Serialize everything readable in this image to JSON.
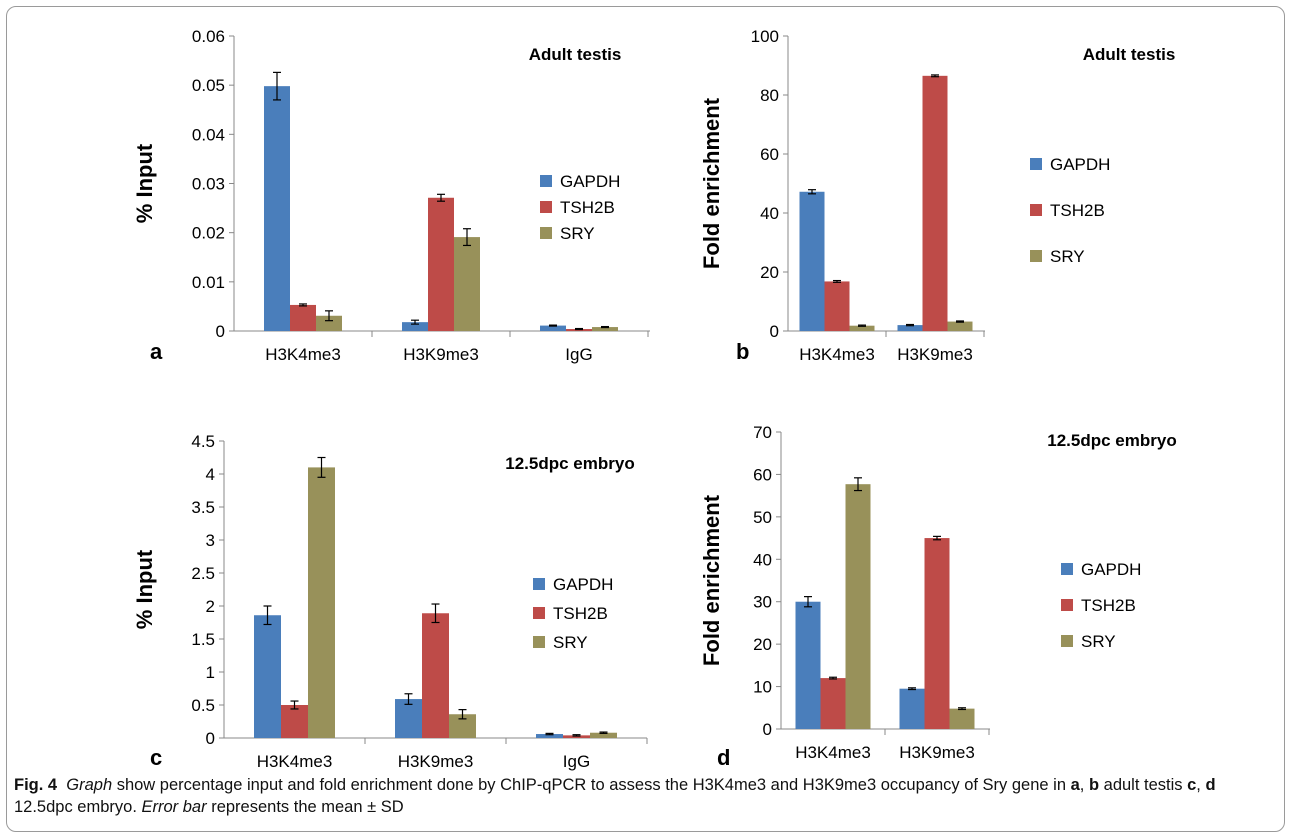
{
  "chart_data": [
    {
      "type": "bar",
      "panel_label": "a",
      "annotation": "Adult testis",
      "ylabel": "% Input",
      "xlabel": "",
      "ylim": [
        0,
        0.06
      ],
      "yticks": [
        "0",
        "0.01",
        "0.02",
        "0.03",
        "0.04",
        "0.05",
        "0.06"
      ],
      "categories": [
        "H3K4me3",
        "H3K9me3",
        "IgG"
      ],
      "legend_position": "right",
      "series": [
        {
          "name": "GAPDH",
          "color": "#4a7ebb",
          "values": [
            0.0498,
            0.0018,
            0.0011
          ],
          "errors": [
            0.0028,
            0.0004,
            0.0001
          ]
        },
        {
          "name": "TSH2B",
          "color": "#be4b48",
          "values": [
            0.0053,
            0.0271,
            0.0004
          ],
          "errors": [
            0.0002,
            0.0007,
            0.0001
          ]
        },
        {
          "name": "SRY",
          "color": "#98915a",
          "values": [
            0.0031,
            0.0191,
            0.0008
          ],
          "errors": [
            0.001,
            0.0017,
            0.0001
          ]
        }
      ]
    },
    {
      "type": "bar",
      "panel_label": "b",
      "annotation": "Adult testis",
      "ylabel": "Fold enrichment",
      "xlabel": "",
      "ylim": [
        0,
        100
      ],
      "yticks": [
        "0",
        "20",
        "40",
        "60",
        "80",
        "100"
      ],
      "categories": [
        "H3K4me3",
        "H3K9me3"
      ],
      "legend_position": "right",
      "series": [
        {
          "name": "GAPDH",
          "color": "#4a7ebb",
          "values": [
            47.2,
            2.0
          ],
          "errors": [
            0.7,
            0.2
          ]
        },
        {
          "name": "TSH2B",
          "color": "#be4b48",
          "values": [
            16.8,
            86.5
          ],
          "errors": [
            0.3,
            0.3
          ]
        },
        {
          "name": "SRY",
          "color": "#98915a",
          "values": [
            1.8,
            3.2
          ],
          "errors": [
            0.2,
            0.2
          ]
        }
      ]
    },
    {
      "type": "bar",
      "panel_label": "c",
      "annotation": "12.5dpc embryo",
      "ylabel": "% Input",
      "xlabel": "",
      "ylim": [
        0,
        4.5
      ],
      "yticks": [
        "0",
        "0.5",
        "1",
        "1.5",
        "2",
        "2.5",
        "3",
        "3.5",
        "4",
        "4.5"
      ],
      "categories": [
        "H3K4me3",
        "H3K9me3",
        "IgG"
      ],
      "legend_position": "right",
      "series": [
        {
          "name": "GAPDH",
          "color": "#4a7ebb",
          "values": [
            1.86,
            0.59,
            0.06
          ],
          "errors": [
            0.14,
            0.08,
            0.01
          ]
        },
        {
          "name": "TSH2B",
          "color": "#be4b48",
          "values": [
            0.5,
            1.89,
            0.04
          ],
          "errors": [
            0.06,
            0.14,
            0.01
          ]
        },
        {
          "name": "SRY",
          "color": "#98915a",
          "values": [
            4.1,
            0.36,
            0.08
          ],
          "errors": [
            0.15,
            0.07,
            0.01
          ]
        }
      ]
    },
    {
      "type": "bar",
      "panel_label": "d",
      "annotation": "12.5dpc embryo",
      "ylabel": "Fold enrichment",
      "xlabel": "",
      "ylim": [
        0,
        70
      ],
      "yticks": [
        "0",
        "10",
        "20",
        "30",
        "40",
        "50",
        "60",
        "70"
      ],
      "categories": [
        "H3K4me3",
        "H3K9me3"
      ],
      "legend_position": "right",
      "series": [
        {
          "name": "GAPDH",
          "color": "#4a7ebb",
          "values": [
            30.0,
            9.5
          ],
          "errors": [
            1.2,
            0.2
          ]
        },
        {
          "name": "TSH2B",
          "color": "#be4b48",
          "values": [
            12.0,
            45.0
          ],
          "errors": [
            0.2,
            0.4
          ]
        },
        {
          "name": "SRY",
          "color": "#98915a",
          "values": [
            57.7,
            4.8
          ],
          "errors": [
            1.5,
            0.2
          ]
        }
      ]
    }
  ],
  "caption": {
    "fig_label": "Fig. 4",
    "part1_italic": "Graph",
    "part2": " show percentage input and fold enrichment done by ChIP-qPCR to assess the H3K4me3 and H3K9me3 occupancy of Sry gene in ",
    "a": "a",
    "sep1": ", ",
    "b": "b",
    "part3": " adult testis ",
    "c": "c",
    "sep2": ", ",
    "d": "d",
    "part4": " 12.5dpc embryo. ",
    "part5_italic": "Error bar",
    "part6": " represents the mean ± SD"
  }
}
